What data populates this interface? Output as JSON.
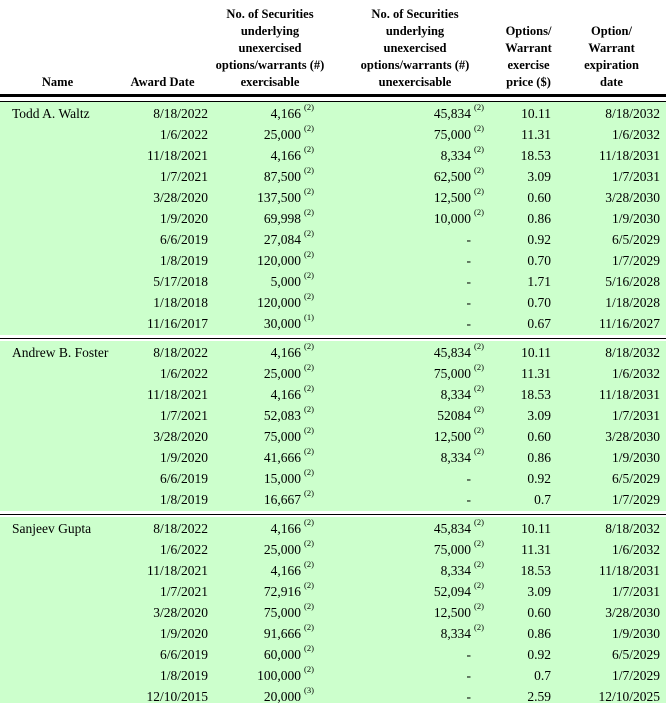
{
  "table": {
    "highlight_color": "#ccffcc",
    "header": {
      "name": "Name",
      "award_date": "Award Date",
      "exercisable": "No. of Securities\nunderlying\nunexercised\noptions/warrants (#)\nexercisable",
      "unexercisable": "No. of Securities\nunderlying\nunexercised\noptions/warrants (#)\nunexercisable",
      "price": "Options/\nWarrant\nexercise\nprice ($)",
      "expiration": "Option/\nWarrant\nexpiration\ndate"
    },
    "sections": [
      {
        "name": "Todd A. Waltz",
        "rows": [
          {
            "date": "8/18/2022",
            "ex": "4,166",
            "exn": "(2)",
            "unex": "45,834",
            "unexn": "(2)",
            "price": "10.11",
            "exp": "8/18/2032"
          },
          {
            "date": "1/6/2022",
            "ex": "25,000",
            "exn": "(2)",
            "unex": "75,000",
            "unexn": "(2)",
            "price": "11.31",
            "exp": "1/6/2032"
          },
          {
            "date": "11/18/2021",
            "ex": "4,166",
            "exn": "(2)",
            "unex": "8,334",
            "unexn": "(2)",
            "price": "18.53",
            "exp": "11/18/2031"
          },
          {
            "date": "1/7/2021",
            "ex": "87,500",
            "exn": "(2)",
            "unex": "62,500",
            "unexn": "(2)",
            "price": "3.09",
            "exp": "1/7/2031"
          },
          {
            "date": "3/28/2020",
            "ex": "137,500",
            "exn": "(2)",
            "unex": "12,500",
            "unexn": "(2)",
            "price": "0.60",
            "exp": "3/28/2030"
          },
          {
            "date": "1/9/2020",
            "ex": "69,998",
            "exn": "(2)",
            "unex": "10,000",
            "unexn": "(2)",
            "price": "0.86",
            "exp": "1/9/2030"
          },
          {
            "date": "6/6/2019",
            "ex": "27,084",
            "exn": "(2)",
            "unex": "-",
            "unexn": "",
            "price": "0.92",
            "exp": "6/5/2029"
          },
          {
            "date": "1/8/2019",
            "ex": "120,000",
            "exn": "(2)",
            "unex": "-",
            "unexn": "",
            "price": "0.70",
            "exp": "1/7/2029"
          },
          {
            "date": "5/17/2018",
            "ex": "5,000",
            "exn": "(2)",
            "unex": "-",
            "unexn": "",
            "price": "1.71",
            "exp": "5/16/2028"
          },
          {
            "date": "1/18/2018",
            "ex": "120,000",
            "exn": "(2)",
            "unex": "-",
            "unexn": "",
            "price": "0.70",
            "exp": "1/18/2028"
          },
          {
            "date": "11/16/2017",
            "ex": "30,000",
            "exn": "(1)",
            "unex": "-",
            "unexn": "",
            "price": "0.67",
            "exp": "11/16/2027"
          }
        ]
      },
      {
        "name": "Andrew B. Foster",
        "rows": [
          {
            "date": "8/18/2022",
            "ex": "4,166",
            "exn": "(2)",
            "unex": "45,834",
            "unexn": "(2)",
            "price": "10.11",
            "exp": "8/18/2032"
          },
          {
            "date": "1/6/2022",
            "ex": "25,000",
            "exn": "(2)",
            "unex": "75,000",
            "unexn": "(2)",
            "price": "11.31",
            "exp": "1/6/2032"
          },
          {
            "date": "11/18/2021",
            "ex": "4,166",
            "exn": "(2)",
            "unex": "8,334",
            "unexn": "(2)",
            "price": "18.53",
            "exp": "11/18/2031"
          },
          {
            "date": "1/7/2021",
            "ex": "52,083",
            "exn": "(2)",
            "unex": "52084",
            "unexn": "(2)",
            "price": "3.09",
            "exp": "1/7/2031"
          },
          {
            "date": "3/28/2020",
            "ex": "75,000",
            "exn": "(2)",
            "unex": "12,500",
            "unexn": "(2)",
            "price": "0.60",
            "exp": "3/28/2030"
          },
          {
            "date": "1/9/2020",
            "ex": "41,666",
            "exn": "(2)",
            "unex": "8,334",
            "unexn": "(2)",
            "price": "0.86",
            "exp": "1/9/2030"
          },
          {
            "date": "6/6/2019",
            "ex": "15,000",
            "exn": "(2)",
            "unex": "-",
            "unexn": "",
            "price": "0.92",
            "exp": "6/5/2029"
          },
          {
            "date": "1/8/2019",
            "ex": "16,667",
            "exn": "(2)",
            "unex": "-",
            "unexn": "",
            "price": "0.7",
            "exp": "1/7/2029"
          }
        ]
      },
      {
        "name": "Sanjeev Gupta",
        "rows": [
          {
            "date": "8/18/2022",
            "ex": "4,166",
            "exn": "(2)",
            "unex": "45,834",
            "unexn": "(2)",
            "price": "10.11",
            "exp": "8/18/2032"
          },
          {
            "date": "1/6/2022",
            "ex": "25,000",
            "exn": "(2)",
            "unex": "75,000",
            "unexn": "(2)",
            "price": "11.31",
            "exp": "1/6/2032"
          },
          {
            "date": "11/18/2021",
            "ex": "4,166",
            "exn": "(2)",
            "unex": "8,334",
            "unexn": "(2)",
            "price": "18.53",
            "exp": "11/18/2031"
          },
          {
            "date": "1/7/2021",
            "ex": "72,916",
            "exn": "(2)",
            "unex": "52,094",
            "unexn": "(2)",
            "price": "3.09",
            "exp": "1/7/2031"
          },
          {
            "date": "3/28/2020",
            "ex": "75,000",
            "exn": "(2)",
            "unex": "12,500",
            "unexn": "(2)",
            "price": "0.60",
            "exp": "3/28/2030"
          },
          {
            "date": "1/9/2020",
            "ex": "91,666",
            "exn": "(2)",
            "unex": "8,334",
            "unexn": "(2)",
            "price": "0.86",
            "exp": "1/9/2030"
          },
          {
            "date": "6/6/2019",
            "ex": "60,000",
            "exn": "(2)",
            "unex": "-",
            "unexn": "",
            "price": "0.92",
            "exp": "6/5/2029"
          },
          {
            "date": "1/8/2019",
            "ex": "100,000",
            "exn": "(2)",
            "unex": "-",
            "unexn": "",
            "price": "0.7",
            "exp": "1/7/2029"
          },
          {
            "date": "12/10/2015",
            "ex": "20,000",
            "exn": "(3)",
            "unex": "-",
            "unexn": "",
            "price": "2.59",
            "exp": "12/10/2025"
          }
        ]
      }
    ]
  }
}
